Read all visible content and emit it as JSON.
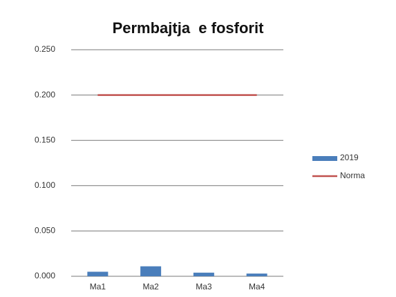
{
  "chart_data": {
    "type": "bar",
    "title": "Permbajtja  e fosforit",
    "categories": [
      "Ma1",
      "Ma2",
      "Ma3",
      "Ma4"
    ],
    "series": [
      {
        "name": "2019",
        "type": "bar",
        "color": "#4a7ebb",
        "values": [
          0.005,
          0.011,
          0.004,
          0.003
        ]
      },
      {
        "name": "Norma",
        "type": "line",
        "color": "#c0504d",
        "values": [
          0.2,
          0.2,
          0.2,
          0.2
        ]
      }
    ],
    "ylim": [
      0,
      0.25
    ],
    "yticks": [
      {
        "value": 0,
        "label": "0.000"
      },
      {
        "value": 0.05,
        "label": "0.050"
      },
      {
        "value": 0.1,
        "label": "0.100"
      },
      {
        "value": 0.15,
        "label": "0.150"
      },
      {
        "value": 0.2,
        "label": "0.200"
      },
      {
        "value": 0.25,
        "label": "0.250"
      }
    ],
    "grid": true,
    "legend": "right"
  }
}
